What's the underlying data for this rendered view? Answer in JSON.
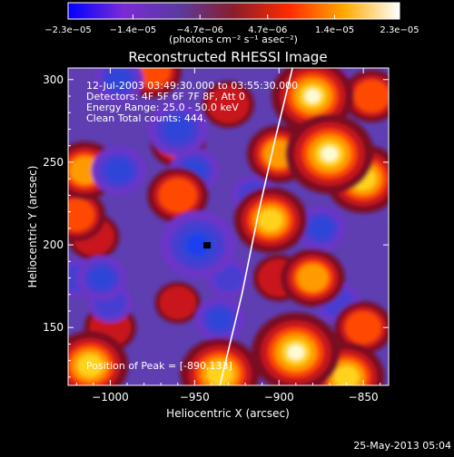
{
  "chart_data": {
    "type": "heatmap",
    "title": "Reconstructed RHESSI Image",
    "xlabel": "Heliocentric X (arcsec)",
    "ylabel": "Heliocentric Y (arcsec)",
    "xlim": [
      -1025,
      -835
    ],
    "ylim": [
      115,
      307
    ],
    "xticks": [
      -1000,
      -950,
      -900,
      -850
    ],
    "xtick_labels": [
      "−1000",
      "−950",
      "−900",
      "−850"
    ],
    "yticks": [
      150,
      200,
      250,
      300
    ],
    "ytick_labels": [
      "150",
      "200",
      "250",
      "300"
    ],
    "colorbar": {
      "ticks": [
        -2.3e-05,
        -1.4e-05,
        -4.7e-06,
        4.7e-06,
        1.4e-05,
        2.3e-05
      ],
      "tick_labels": [
        "−2.3e−05",
        "−1.4e−05",
        "−4.7e−06",
        "4.7e−06",
        "1.4e−05",
        "2.3e−05"
      ],
      "unit_label": "(photons cm⁻² s⁻¹ asec⁻²)",
      "colors": [
        "#0000ff",
        "#7a2bd6",
        "#5a3aa0",
        "#8a1e2a",
        "#ff2a00",
        "#ffaa00",
        "#ffffff"
      ]
    },
    "annotations": [
      "12-Jul-2003 03:49:30.000 to 03:55:30.000",
      "Detectors: 4F 5F 6F 7F 8F, Att 0",
      "Energy Range: 25.0 - 50.0 keV",
      "Clean    Total counts: 444.",
      "Position of Peak = [-890,133]"
    ],
    "peak": {
      "x": -890,
      "y": 133
    },
    "limb_curve": [
      {
        "x": -935,
        "y": 115
      },
      {
        "x": -922,
        "y": 170
      },
      {
        "x": -912,
        "y": 220
      },
      {
        "x": -902,
        "y": 265
      },
      {
        "x": -892,
        "y": 307
      }
    ],
    "blobs": [
      {
        "x": -870,
        "y": 255,
        "w": 1.0
      },
      {
        "x": -880,
        "y": 290,
        "w": 0.9
      },
      {
        "x": -850,
        "y": 240,
        "w": 0.8
      },
      {
        "x": -905,
        "y": 215,
        "w": 0.75
      },
      {
        "x": -890,
        "y": 135,
        "w": 1.0
      },
      {
        "x": -860,
        "y": 120,
        "w": 0.8
      },
      {
        "x": -935,
        "y": 122,
        "w": 0.85
      },
      {
        "x": -1012,
        "y": 127,
        "w": 0.8
      },
      {
        "x": -1000,
        "y": 150,
        "w": 0.4
      },
      {
        "x": -960,
        "y": 230,
        "w": 0.55
      },
      {
        "x": -1015,
        "y": 245,
        "w": 0.6
      },
      {
        "x": -1020,
        "y": 218,
        "w": 0.5
      },
      {
        "x": -880,
        "y": 180,
        "w": 0.6
      },
      {
        "x": -930,
        "y": 285,
        "w": 0.4
      },
      {
        "x": -1010,
        "y": 205,
        "w": 0.4
      },
      {
        "x": -850,
        "y": 150,
        "w": 0.5
      },
      {
        "x": -960,
        "y": 262,
        "w": 0.45
      },
      {
        "x": -900,
        "y": 255,
        "w": 0.6
      },
      {
        "x": -845,
        "y": 290,
        "w": 0.5
      },
      {
        "x": -960,
        "y": 165,
        "w": 0.3
      },
      {
        "x": -975,
        "y": 305,
        "w": 0.5
      },
      {
        "x": -900,
        "y": 180,
        "w": 0.4
      },
      {
        "x": -948,
        "y": 200,
        "w": -1.0
      },
      {
        "x": -960,
        "y": 270,
        "w": -0.7
      },
      {
        "x": -995,
        "y": 245,
        "w": -0.6
      },
      {
        "x": -950,
        "y": 245,
        "w": -0.5
      },
      {
        "x": -935,
        "y": 155,
        "w": -0.5
      },
      {
        "x": -1005,
        "y": 180,
        "w": -0.5
      },
      {
        "x": -995,
        "y": 300,
        "w": -0.5
      },
      {
        "x": -1000,
        "y": 165,
        "w": -0.4
      },
      {
        "x": -915,
        "y": 230,
        "w": -0.4
      },
      {
        "x": -875,
        "y": 210,
        "w": -0.5
      },
      {
        "x": -930,
        "y": 180,
        "w": -0.35
      },
      {
        "x": -865,
        "y": 165,
        "w": -0.4
      },
      {
        "x": -1020,
        "y": 180,
        "w": -0.35
      },
      {
        "x": -870,
        "y": 300,
        "w": -0.3
      }
    ]
  },
  "footer": {
    "timestamp": "25-May-2013 05:04"
  }
}
